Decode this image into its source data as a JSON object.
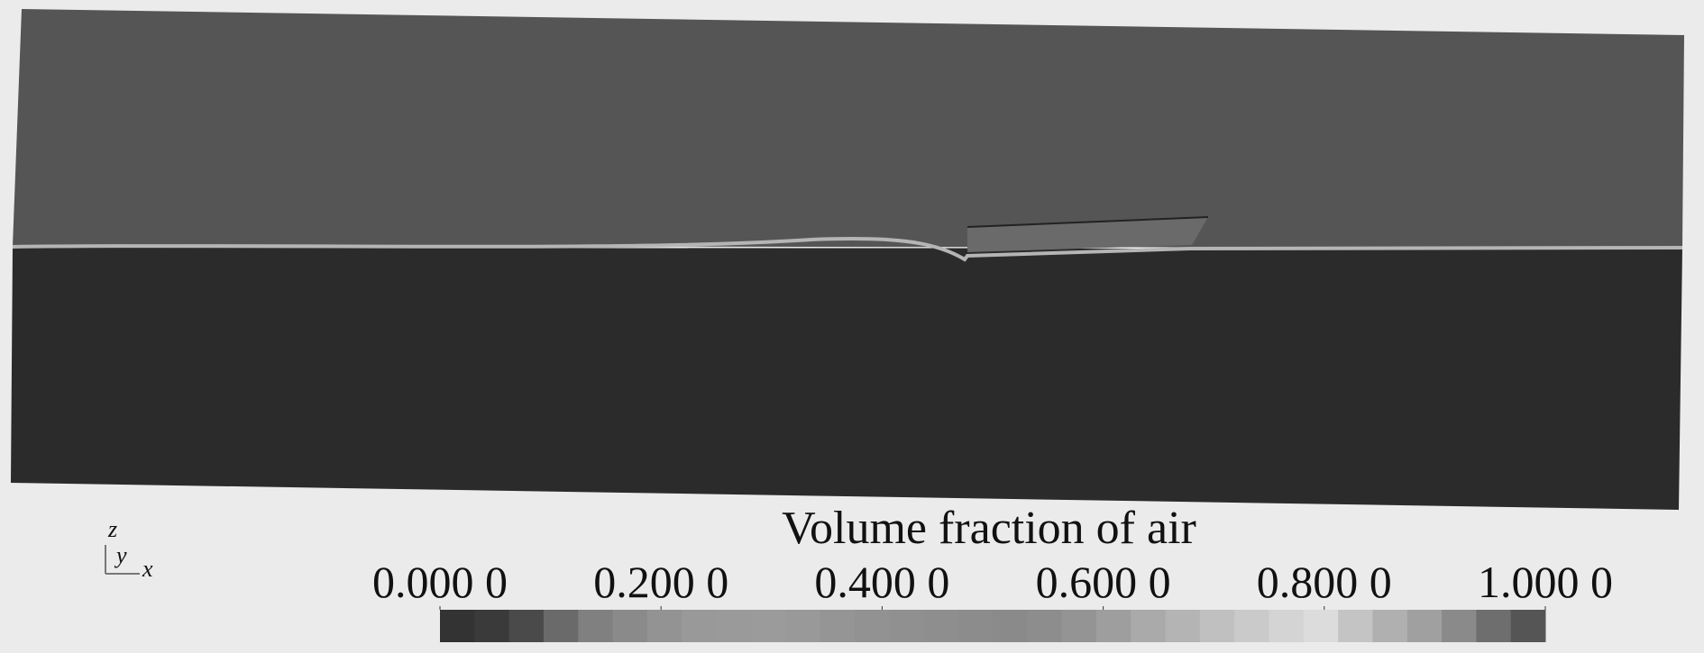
{
  "colorbar": {
    "title": "Volume fraction of air",
    "range": [
      0,
      1
    ],
    "ticks": [
      {
        "value": 0,
        "label": "0.000 0"
      },
      {
        "value": 0.2,
        "label": "0.200 0"
      },
      {
        "value": 0.4,
        "label": "0.400 0"
      },
      {
        "value": 0.6,
        "label": "0.600 0"
      },
      {
        "value": 0.8,
        "label": "0.800 0"
      },
      {
        "value": 1,
        "label": "1.000 0"
      }
    ],
    "colors": [
      "#333333",
      "#3a3a3a",
      "#4a4a4a",
      "#6a6a6a",
      "#808080",
      "#8a8a8a",
      "#939393",
      "#999999",
      "#9a9a9a",
      "#9b9b9b",
      "#999999",
      "#959595",
      "#929292",
      "#909090",
      "#8e8e8e",
      "#8c8c8c",
      "#8a8a8a",
      "#8d8d8d",
      "#949494",
      "#9e9e9e",
      "#aaaaaa",
      "#b4b4b4",
      "#c0c0c0",
      "#cacaca",
      "#d4d4d4",
      "#dcdcdc",
      "#c4c4c4",
      "#b0b0b0",
      "#a0a0a0",
      "#8a8a8a",
      "#6e6e6e",
      "#555555"
    ]
  },
  "axes": {
    "z": "z",
    "y": "y",
    "x": "x"
  }
}
